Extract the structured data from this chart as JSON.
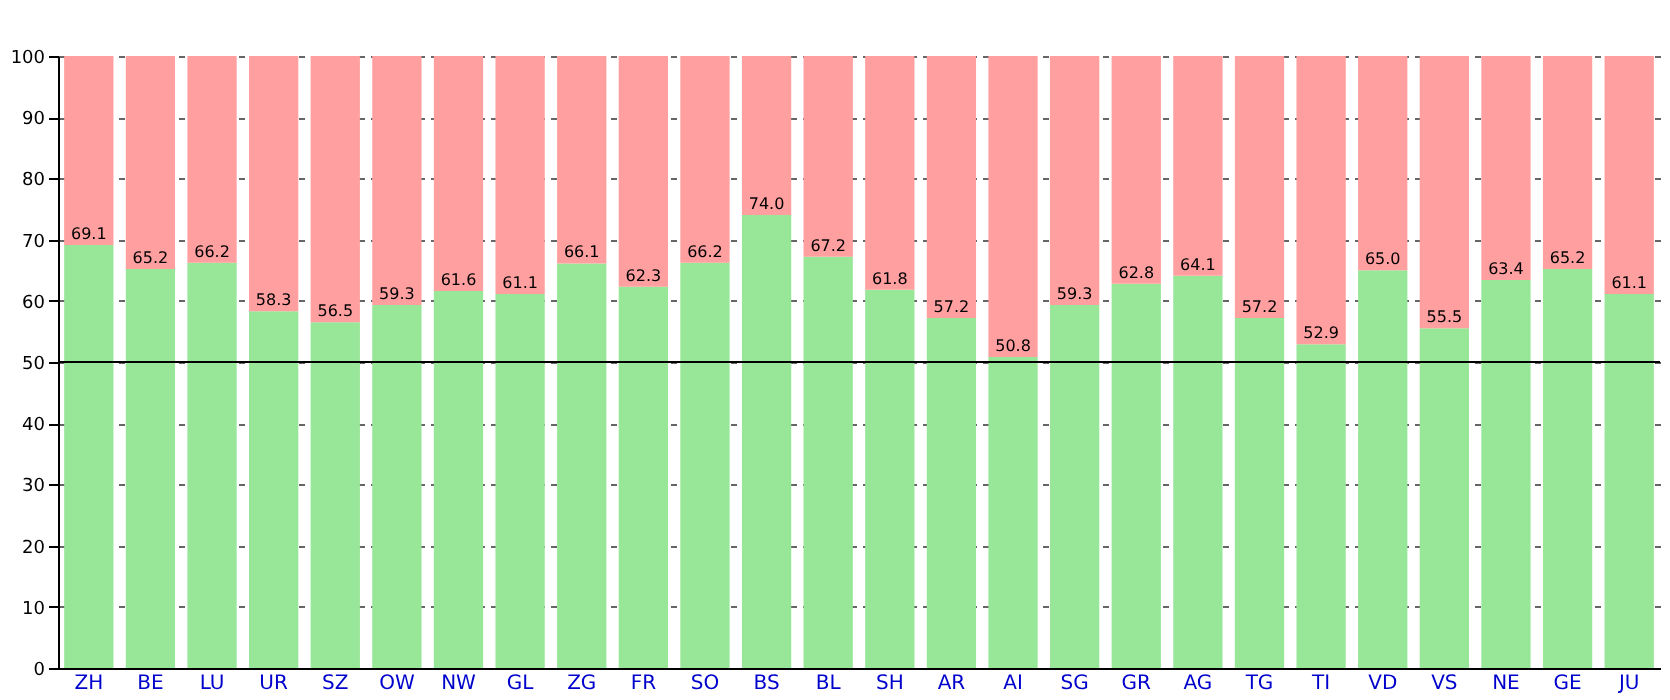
{
  "chart_data": {
    "type": "bar",
    "stacked": true,
    "categories": [
      "ZH",
      "BE",
      "LU",
      "UR",
      "SZ",
      "OW",
      "NW",
      "GL",
      "ZG",
      "FR",
      "SO",
      "BS",
      "BL",
      "SH",
      "AR",
      "AI",
      "SG",
      "GR",
      "AG",
      "TG",
      "TI",
      "VD",
      "VS",
      "NE",
      "GE",
      "JU"
    ],
    "series": [
      {
        "color": "#98e698",
        "values": [
          69.1,
          65.2,
          66.2,
          58.3,
          56.5,
          59.3,
          61.6,
          61.1,
          66.1,
          62.3,
          66.2,
          74.0,
          67.2,
          61.8,
          57.2,
          50.8,
          59.3,
          62.8,
          64.1,
          57.2,
          52.9,
          65.0,
          55.5,
          63.4,
          65.2,
          61.1
        ],
        "value_labels": [
          "69.1",
          "65.2",
          "66.2",
          "58.3",
          "56.5",
          "59.3",
          "61.6",
          "61.1",
          "66.1",
          "62.3",
          "66.2",
          "74.0",
          "67.2",
          "61.8",
          "57.2",
          "50.8",
          "59.3",
          "62.8",
          "64.1",
          "57.2",
          "52.9",
          "65.0",
          "55.5",
          "63.4",
          "65.2",
          "61.1"
        ]
      },
      {
        "color": "#ff9f9f",
        "values": [
          30.9,
          34.8,
          33.8,
          41.7,
          43.5,
          40.7,
          38.4,
          38.9,
          33.9,
          37.7,
          33.8,
          26.0,
          32.8,
          38.2,
          42.8,
          49.2,
          40.7,
          37.2,
          35.9,
          42.8,
          47.1,
          35.0,
          44.5,
          36.6,
          34.8,
          38.9
        ]
      }
    ],
    "ylim": [
      0,
      100
    ],
    "yticks": [
      0,
      10,
      20,
      30,
      40,
      50,
      60,
      70,
      80,
      90,
      100
    ],
    "grid": "y",
    "ref_lines": [
      {
        "axis": "y",
        "value": 50,
        "color": "#000000"
      }
    ]
  }
}
